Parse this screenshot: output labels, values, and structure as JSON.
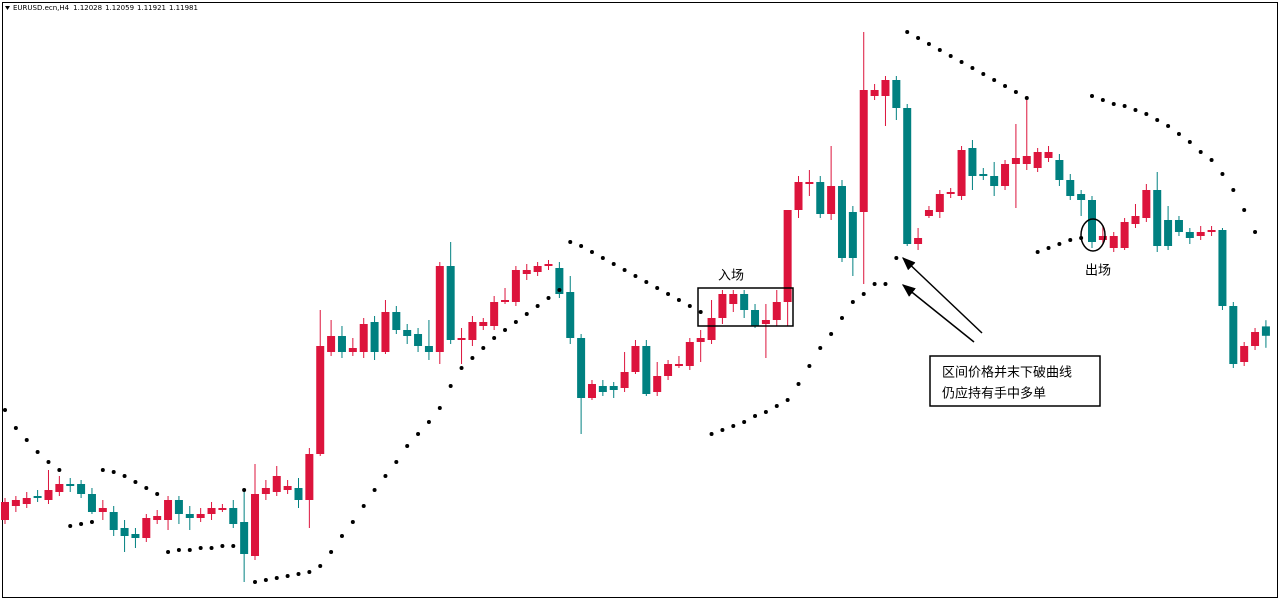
{
  "chart_data": {
    "type": "candlestick",
    "title": "EURUSD.ecn,H4",
    "ohlc_header": [
      1.12028,
      1.12059,
      1.11921,
      1.11981
    ],
    "ylim": [
      1.1066,
      1.1366
    ],
    "up_color": "#dc143c",
    "down_color": "#008080",
    "candles": [
      [
        1.1106,
        1.1117,
        1.1104,
        1.1115
      ],
      [
        1.1113,
        1.1118,
        1.111,
        1.1116
      ],
      [
        1.1114,
        1.112,
        1.1112,
        1.1117
      ],
      [
        1.1118,
        1.1121,
        1.1115,
        1.1117
      ],
      [
        1.1116,
        1.1131,
        1.1114,
        1.1121
      ],
      [
        1.112,
        1.1128,
        1.1118,
        1.1124
      ],
      [
        1.1124,
        1.1127,
        1.112,
        1.1123
      ],
      [
        1.1124,
        1.1126,
        1.1117,
        1.1119
      ],
      [
        1.1119,
        1.1122,
        1.1109,
        1.111
      ],
      [
        1.111,
        1.1116,
        1.1106,
        1.1112
      ],
      [
        1.111,
        1.1113,
        1.1098,
        1.1101
      ],
      [
        1.1102,
        1.1106,
        1.109,
        1.1098
      ],
      [
        1.1099,
        1.1102,
        1.1092,
        1.1097
      ],
      [
        1.1097,
        1.1109,
        1.1095,
        1.1107
      ],
      [
        1.1106,
        1.1111,
        1.1104,
        1.1108
      ],
      [
        1.1106,
        1.1118,
        1.1101,
        1.1116
      ],
      [
        1.1116,
        1.1118,
        1.1104,
        1.1109
      ],
      [
        1.1109,
        1.1113,
        1.1101,
        1.1107
      ],
      [
        1.1107,
        1.1112,
        1.1105,
        1.1109
      ],
      [
        1.1109,
        1.1115,
        1.1106,
        1.1112
      ],
      [
        1.1111,
        1.1114,
        1.111,
        1.1112
      ],
      [
        1.1112,
        1.1116,
        1.1102,
        1.1104
      ],
      [
        1.1105,
        1.1121,
        1.1075,
        1.1089
      ],
      [
        1.1088,
        1.1134,
        1.1086,
        1.1119
      ],
      [
        1.1119,
        1.1126,
        1.1116,
        1.1122
      ],
      [
        1.112,
        1.1133,
        1.1118,
        1.1128
      ],
      [
        1.1121,
        1.1126,
        1.1119,
        1.1123
      ],
      [
        1.1122,
        1.1127,
        1.1112,
        1.1116
      ],
      [
        1.1116,
        1.1142,
        1.1102,
        1.1139
      ],
      [
        1.1139,
        1.1211,
        1.1138,
        1.1193
      ],
      [
        1.119,
        1.1206,
        1.1188,
        1.1198
      ],
      [
        1.1198,
        1.1203,
        1.1187,
        1.119
      ],
      [
        1.119,
        1.1197,
        1.1188,
        1.1192
      ],
      [
        1.119,
        1.1207,
        1.1187,
        1.1204
      ],
      [
        1.1205,
        1.1208,
        1.1186,
        1.119
      ],
      [
        1.119,
        1.1216,
        1.1189,
        1.121
      ],
      [
        1.121,
        1.1213,
        1.1199,
        1.1201
      ],
      [
        1.1201,
        1.1204,
        1.1194,
        1.1198
      ],
      [
        1.1199,
        1.1202,
        1.119,
        1.1193
      ],
      [
        1.1193,
        1.1206,
        1.1186,
        1.119
      ],
      [
        1.119,
        1.1235,
        1.1184,
        1.1233
      ],
      [
        1.1233,
        1.1245,
        1.1194,
        1.1196
      ],
      [
        1.1196,
        1.1202,
        1.1184,
        1.1197
      ],
      [
        1.1196,
        1.1208,
        1.1193,
        1.1205
      ],
      [
        1.1203,
        1.1207,
        1.1201,
        1.1205
      ],
      [
        1.1203,
        1.1218,
        1.1201,
        1.1215
      ],
      [
        1.1215,
        1.1222,
        1.1214,
        1.1216
      ],
      [
        1.1215,
        1.1233,
        1.1213,
        1.1231
      ],
      [
        1.1229,
        1.1234,
        1.1226,
        1.1231
      ],
      [
        1.123,
        1.1235,
        1.1228,
        1.1233
      ],
      [
        1.1233,
        1.1236,
        1.1231,
        1.1234
      ],
      [
        1.1232,
        1.1235,
        1.1217,
        1.1219
      ],
      [
        1.122,
        1.1228,
        1.1194,
        1.1197
      ],
      [
        1.1197,
        1.1199,
        1.1149,
        1.1167
      ],
      [
        1.1167,
        1.1176,
        1.1166,
        1.1174
      ],
      [
        1.1173,
        1.1176,
        1.1168,
        1.117
      ],
      [
        1.1173,
        1.1175,
        1.1167,
        1.1171
      ],
      [
        1.1172,
        1.119,
        1.117,
        1.118
      ],
      [
        1.118,
        1.1196,
        1.1179,
        1.1193
      ],
      [
        1.1193,
        1.1196,
        1.1168,
        1.1169
      ],
      [
        1.117,
        1.1185,
        1.1168,
        1.1178
      ],
      [
        1.1178,
        1.1186,
        1.1176,
        1.1184
      ],
      [
        1.1183,
        1.1188,
        1.1182,
        1.1184
      ],
      [
        1.1183,
        1.1197,
        1.1181,
        1.1195
      ],
      [
        1.1195,
        1.1201,
        1.1185,
        1.1197
      ],
      [
        1.1196,
        1.1216,
        1.1194,
        1.1207
      ],
      [
        1.1207,
        1.1221,
        1.1204,
        1.1219
      ],
      [
        1.1214,
        1.1221,
        1.121,
        1.1219
      ],
      [
        1.1219,
        1.1221,
        1.1207,
        1.1211
      ],
      [
        1.1211,
        1.1214,
        1.1202,
        1.1203
      ],
      [
        1.1204,
        1.1214,
        1.1187,
        1.1206
      ],
      [
        1.1206,
        1.1221,
        1.1203,
        1.1215
      ],
      [
        1.1215,
        1.1261,
        1.1203,
        1.1261
      ],
      [
        1.1261,
        1.1278,
        1.1257,
        1.1275
      ],
      [
        1.1274,
        1.1281,
        1.1268,
        1.1275
      ],
      [
        1.1275,
        1.1278,
        1.1257,
        1.1259
      ],
      [
        1.1259,
        1.1293,
        1.1256,
        1.1273
      ],
      [
        1.1273,
        1.1276,
        1.1235,
        1.1237
      ],
      [
        1.126,
        1.1263,
        1.1228,
        1.1237
      ],
      [
        1.126,
        1.135,
        1.1224,
        1.1321
      ],
      [
        1.1318,
        1.1324,
        1.1316,
        1.1321
      ],
      [
        1.1318,
        1.1328,
        1.1303,
        1.1326
      ],
      [
        1.1326,
        1.1328,
        1.1306,
        1.1312
      ],
      [
        1.1312,
        1.1314,
        1.1243,
        1.1244
      ],
      [
        1.1244,
        1.1252,
        1.1241,
        1.1247
      ],
      [
        1.1258,
        1.1263,
        1.1257,
        1.1261
      ],
      [
        1.126,
        1.1271,
        1.1257,
        1.1269
      ],
      [
        1.1269,
        1.1272,
        1.1267,
        1.127
      ],
      [
        1.1268,
        1.1293,
        1.1266,
        1.1291
      ],
      [
        1.1292,
        1.1296,
        1.1271,
        1.1278
      ],
      [
        1.1279,
        1.1282,
        1.1276,
        1.1278
      ],
      [
        1.1278,
        1.1285,
        1.1268,
        1.1273
      ],
      [
        1.1273,
        1.1286,
        1.1271,
        1.1284
      ],
      [
        1.1284,
        1.1304,
        1.1262,
        1.1287
      ],
      [
        1.1284,
        1.1318,
        1.1281,
        1.1288
      ],
      [
        1.1282,
        1.1292,
        1.128,
        1.129
      ],
      [
        1.1287,
        1.1293,
        1.1285,
        1.129
      ],
      [
        1.1286,
        1.1289,
        1.1273,
        1.1276
      ],
      [
        1.1276,
        1.1279,
        1.1266,
        1.1268
      ],
      [
        1.1269,
        1.1271,
        1.1258,
        1.1266
      ],
      [
        1.1266,
        1.1268,
        1.1242,
        1.1245
      ],
      [
        1.1246,
        1.1253,
        1.1244,
        1.1248
      ],
      [
        1.1242,
        1.125,
        1.124,
        1.1248
      ],
      [
        1.1242,
        1.1257,
        1.1241,
        1.1255
      ],
      [
        1.1254,
        1.1264,
        1.1252,
        1.1258
      ],
      [
        1.1257,
        1.1274,
        1.1255,
        1.1271
      ],
      [
        1.1271,
        1.128,
        1.124,
        1.1243
      ],
      [
        1.1256,
        1.1263,
        1.1241,
        1.1243
      ],
      [
        1.1256,
        1.1258,
        1.1248,
        1.125
      ],
      [
        1.125,
        1.1252,
        1.1244,
        1.1247
      ],
      [
        1.1248,
        1.1253,
        1.1246,
        1.125
      ],
      [
        1.125,
        1.1253,
        1.1248,
        1.1251
      ],
      [
        1.1251,
        1.1252,
        1.1211,
        1.1213
      ],
      [
        1.1213,
        1.1215,
        1.1182,
        1.1184
      ],
      [
        1.1185,
        1.1195,
        1.1183,
        1.1193
      ],
      [
        1.1193,
        1.1202,
        1.1191,
        1.12
      ],
      [
        1.12028,
        1.12059,
        1.11921,
        1.11981
      ]
    ],
    "sar": {
      "color": "#000000",
      "values": [
        1.1161,
        1.1152,
        1.1146,
        1.114,
        1.1135,
        1.1131,
        1.1103,
        1.1104,
        1.1105,
        1.1131,
        1.113,
        1.1128,
        1.1125,
        1.1122,
        1.1119,
        1.109,
        1.1091,
        1.1091,
        1.1092,
        1.1092,
        1.1093,
        1.1093,
        1.1121,
        1.1075,
        1.1076,
        1.1077,
        1.1078,
        1.1079,
        1.108,
        1.1083,
        1.109,
        1.1098,
        1.1105,
        1.1113,
        1.1121,
        1.1128,
        1.1135,
        1.1143,
        1.1149,
        1.1155,
        1.1162,
        1.1173,
        1.1182,
        1.1187,
        1.1192,
        1.1197,
        1.1201,
        1.1205,
        1.1209,
        1.1213,
        1.1217,
        1.1221,
        1.1245,
        1.1243,
        1.124,
        1.1237,
        1.1234,
        1.1231,
        1.1228,
        1.1225,
        1.1222,
        1.1219,
        1.1216,
        1.1213,
        1.121,
        1.1149,
        1.1151,
        1.1153,
        1.1155,
        1.1158,
        1.116,
        1.1163,
        1.1166,
        1.1174,
        1.1183,
        1.1192,
        1.1199,
        1.1207,
        1.1215,
        1.1219,
        1.1224,
        1.1224,
        1.1237,
        1.135,
        1.1347,
        1.1344,
        1.1341,
        1.1338,
        1.1335,
        1.1332,
        1.1329,
        1.1326,
        1.1323,
        1.132,
        1.1317,
        1.124,
        1.1242,
        1.1244,
        1.1246,
        1.1247,
        1.1318,
        1.1316,
        1.1314,
        1.1313,
        1.1311,
        1.1309,
        1.1306,
        1.1303,
        1.1299,
        1.1295,
        1.129,
        1.1286,
        1.1279,
        1.1271,
        1.1261,
        1.125,
        null
      ]
    },
    "annotations": {
      "entry": "入场",
      "exit": "出场",
      "note": [
        "区间价格并末下破曲线",
        "仍应持有手中多单"
      ]
    }
  }
}
